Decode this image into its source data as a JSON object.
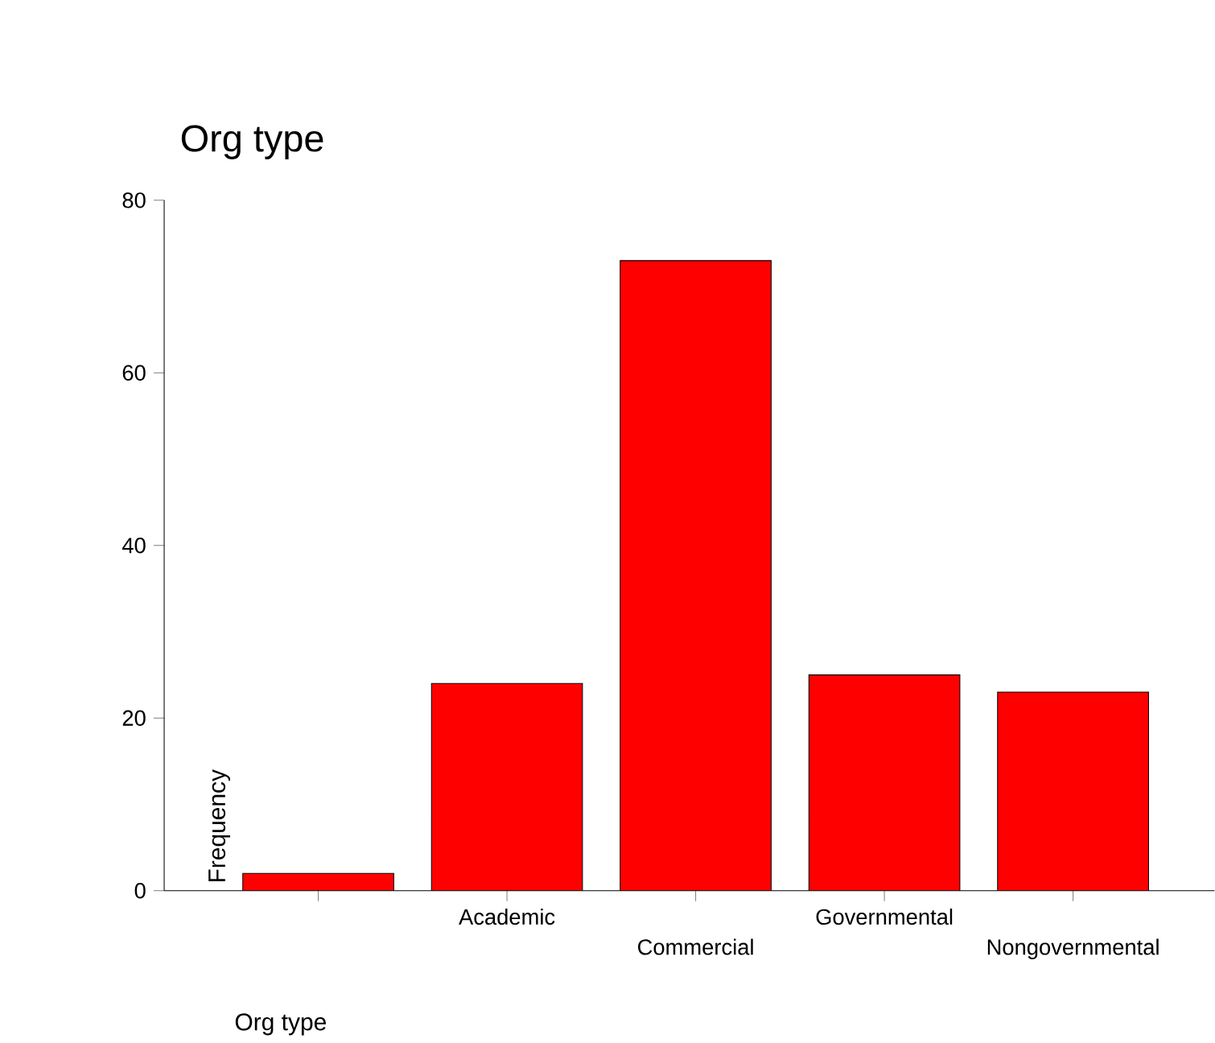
{
  "chart_data": {
    "type": "bar",
    "title": "Org type",
    "xlabel": "Org type",
    "ylabel": "Frequency",
    "categories": [
      null,
      "Academic",
      "Commercial",
      "Governmental",
      "Nongovernmental"
    ],
    "values": [
      2,
      24,
      73,
      25,
      23
    ],
    "color": "#ff0000",
    "ylim": [
      0,
      80
    ],
    "yticks": [
      0,
      20,
      40,
      60,
      80
    ],
    "grid": false
  }
}
